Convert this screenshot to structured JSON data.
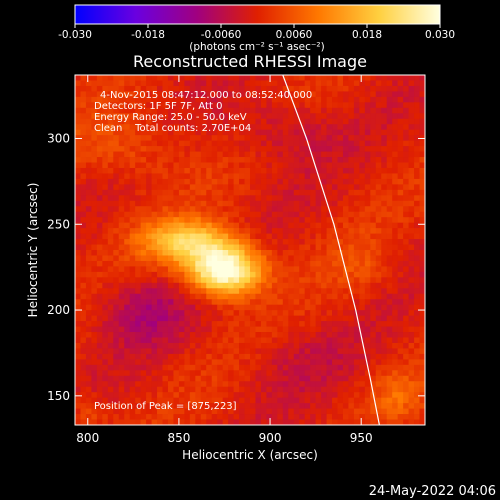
{
  "chart_data": {
    "type": "heatmap",
    "title": "Reconstructed RHESSI Image",
    "xlabel": "Heliocentric X (arcsec)",
    "ylabel": "Heliocentric Y (arcsec)",
    "xlim": [
      793,
      985
    ],
    "ylim": [
      133,
      337
    ],
    "x_ticks": [
      800,
      850,
      900,
      950
    ],
    "y_ticks": [
      150,
      200,
      250,
      300
    ],
    "colorbar": {
      "range": [
        -0.03,
        0.03
      ],
      "ticks": [
        "-0.030",
        "-0.018",
        "-0.0060",
        "0.0060",
        "0.018",
        "0.030"
      ],
      "tick_values": [
        -0.03,
        -0.018,
        -0.006,
        0.006,
        0.018,
        0.03
      ],
      "units": "(photons cm⁻² s⁻¹ asec⁻²)",
      "colors": [
        "#0000ff",
        "#6a00e0",
        "#a00080",
        "#e02000",
        "#ff7800",
        "#ffd040",
        "#ffffe0"
      ]
    },
    "info_lines": [
      "4-Nov-2015 08:47:12.000 to 08:52:40.000",
      "Detectors: 1F 5F 7F, Att 0",
      "Energy Range: 25.0 - 50.0 keV",
      "Clean    Total counts: 2.70E+04"
    ],
    "peak_text": "Position of Peak = [875,223]",
    "peak": [
      875,
      223
    ],
    "limb_curve": [
      [
        907,
        337
      ],
      [
        920,
        300
      ],
      [
        935,
        250
      ],
      [
        947,
        200
      ],
      [
        955,
        160
      ],
      [
        960,
        133
      ]
    ],
    "sources": [
      {
        "x": 875,
        "y": 223,
        "amp": 0.034,
        "sx": 14,
        "sy": 10
      },
      {
        "x": 855,
        "y": 240,
        "amp": 0.02,
        "sx": 18,
        "sy": 9
      },
      {
        "x": 820,
        "y": 295,
        "amp": 0.006,
        "sx": 22,
        "sy": 14
      },
      {
        "x": 950,
        "y": 225,
        "amp": 0.004,
        "sx": 12,
        "sy": 12
      },
      {
        "x": 970,
        "y": 150,
        "amp": 0.006,
        "sx": 10,
        "sy": 10
      },
      {
        "x": 800,
        "y": 140,
        "amp": 0.005,
        "sx": 8,
        "sy": 8
      },
      {
        "x": 830,
        "y": 200,
        "amp": -0.007,
        "sx": 18,
        "sy": 14
      },
      {
        "x": 905,
        "y": 305,
        "amp": -0.005,
        "sx": 20,
        "sy": 14
      },
      {
        "x": 915,
        "y": 170,
        "amp": -0.003,
        "sx": 22,
        "sy": 14
      }
    ]
  },
  "footer_date": "24-May-2022 04:06"
}
